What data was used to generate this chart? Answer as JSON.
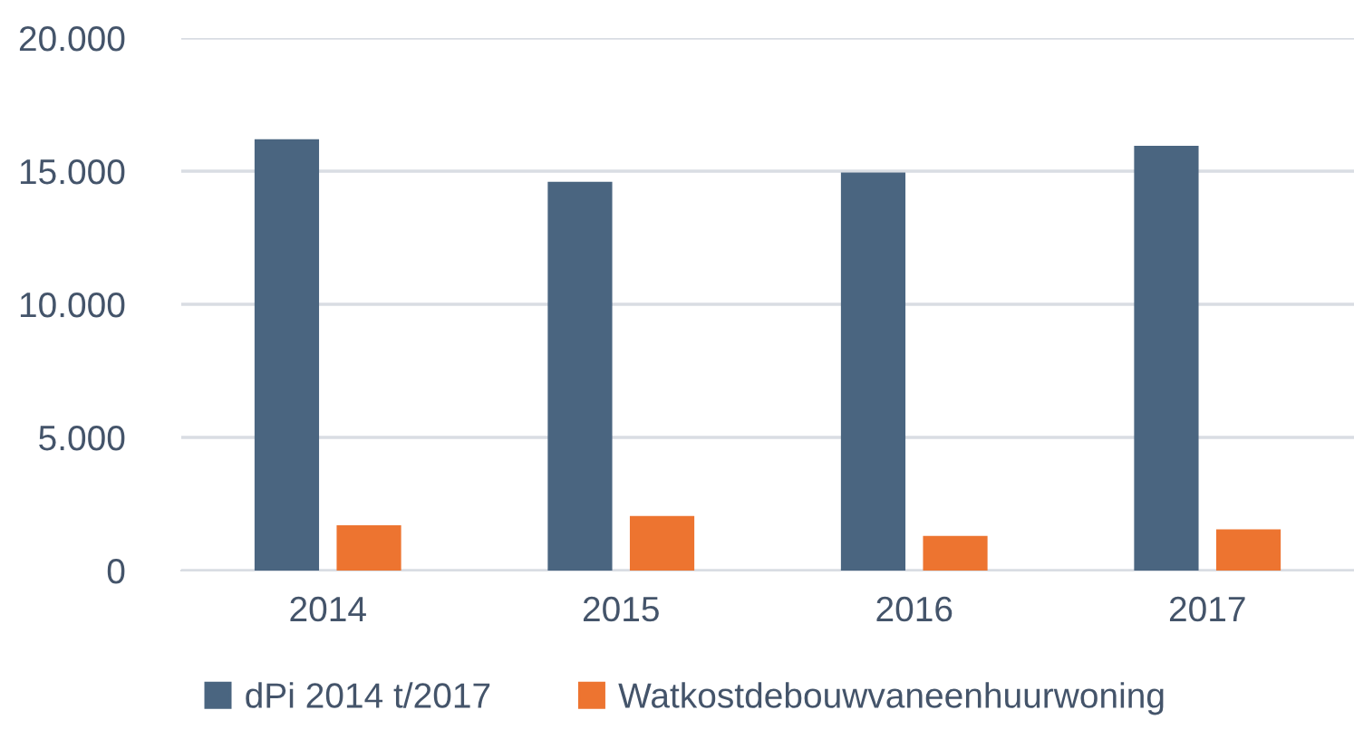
{
  "chart_data": {
    "type": "bar",
    "categories": [
      "2014",
      "2015",
      "2016",
      "2017"
    ],
    "series": [
      {
        "name": "dPi 2014 t/2017",
        "color": "#4a6580",
        "values": [
          16200,
          14600,
          14950,
          15950
        ]
      },
      {
        "name": "Watkostdebouwvaneenhuurwoning",
        "color": "#ed7430",
        "values": [
          1700,
          2050,
          1300,
          1550
        ]
      }
    ],
    "ylim": [
      0,
      20000
    ],
    "yticks": [
      {
        "value": 0,
        "label": "0"
      },
      {
        "value": 5000,
        "label": "5.000"
      },
      {
        "value": 10000,
        "label": "10.000"
      },
      {
        "value": 15000,
        "label": "15.000"
      },
      {
        "value": 20000,
        "label": "20.000"
      }
    ],
    "grid": "y",
    "legend": "bottom"
  }
}
